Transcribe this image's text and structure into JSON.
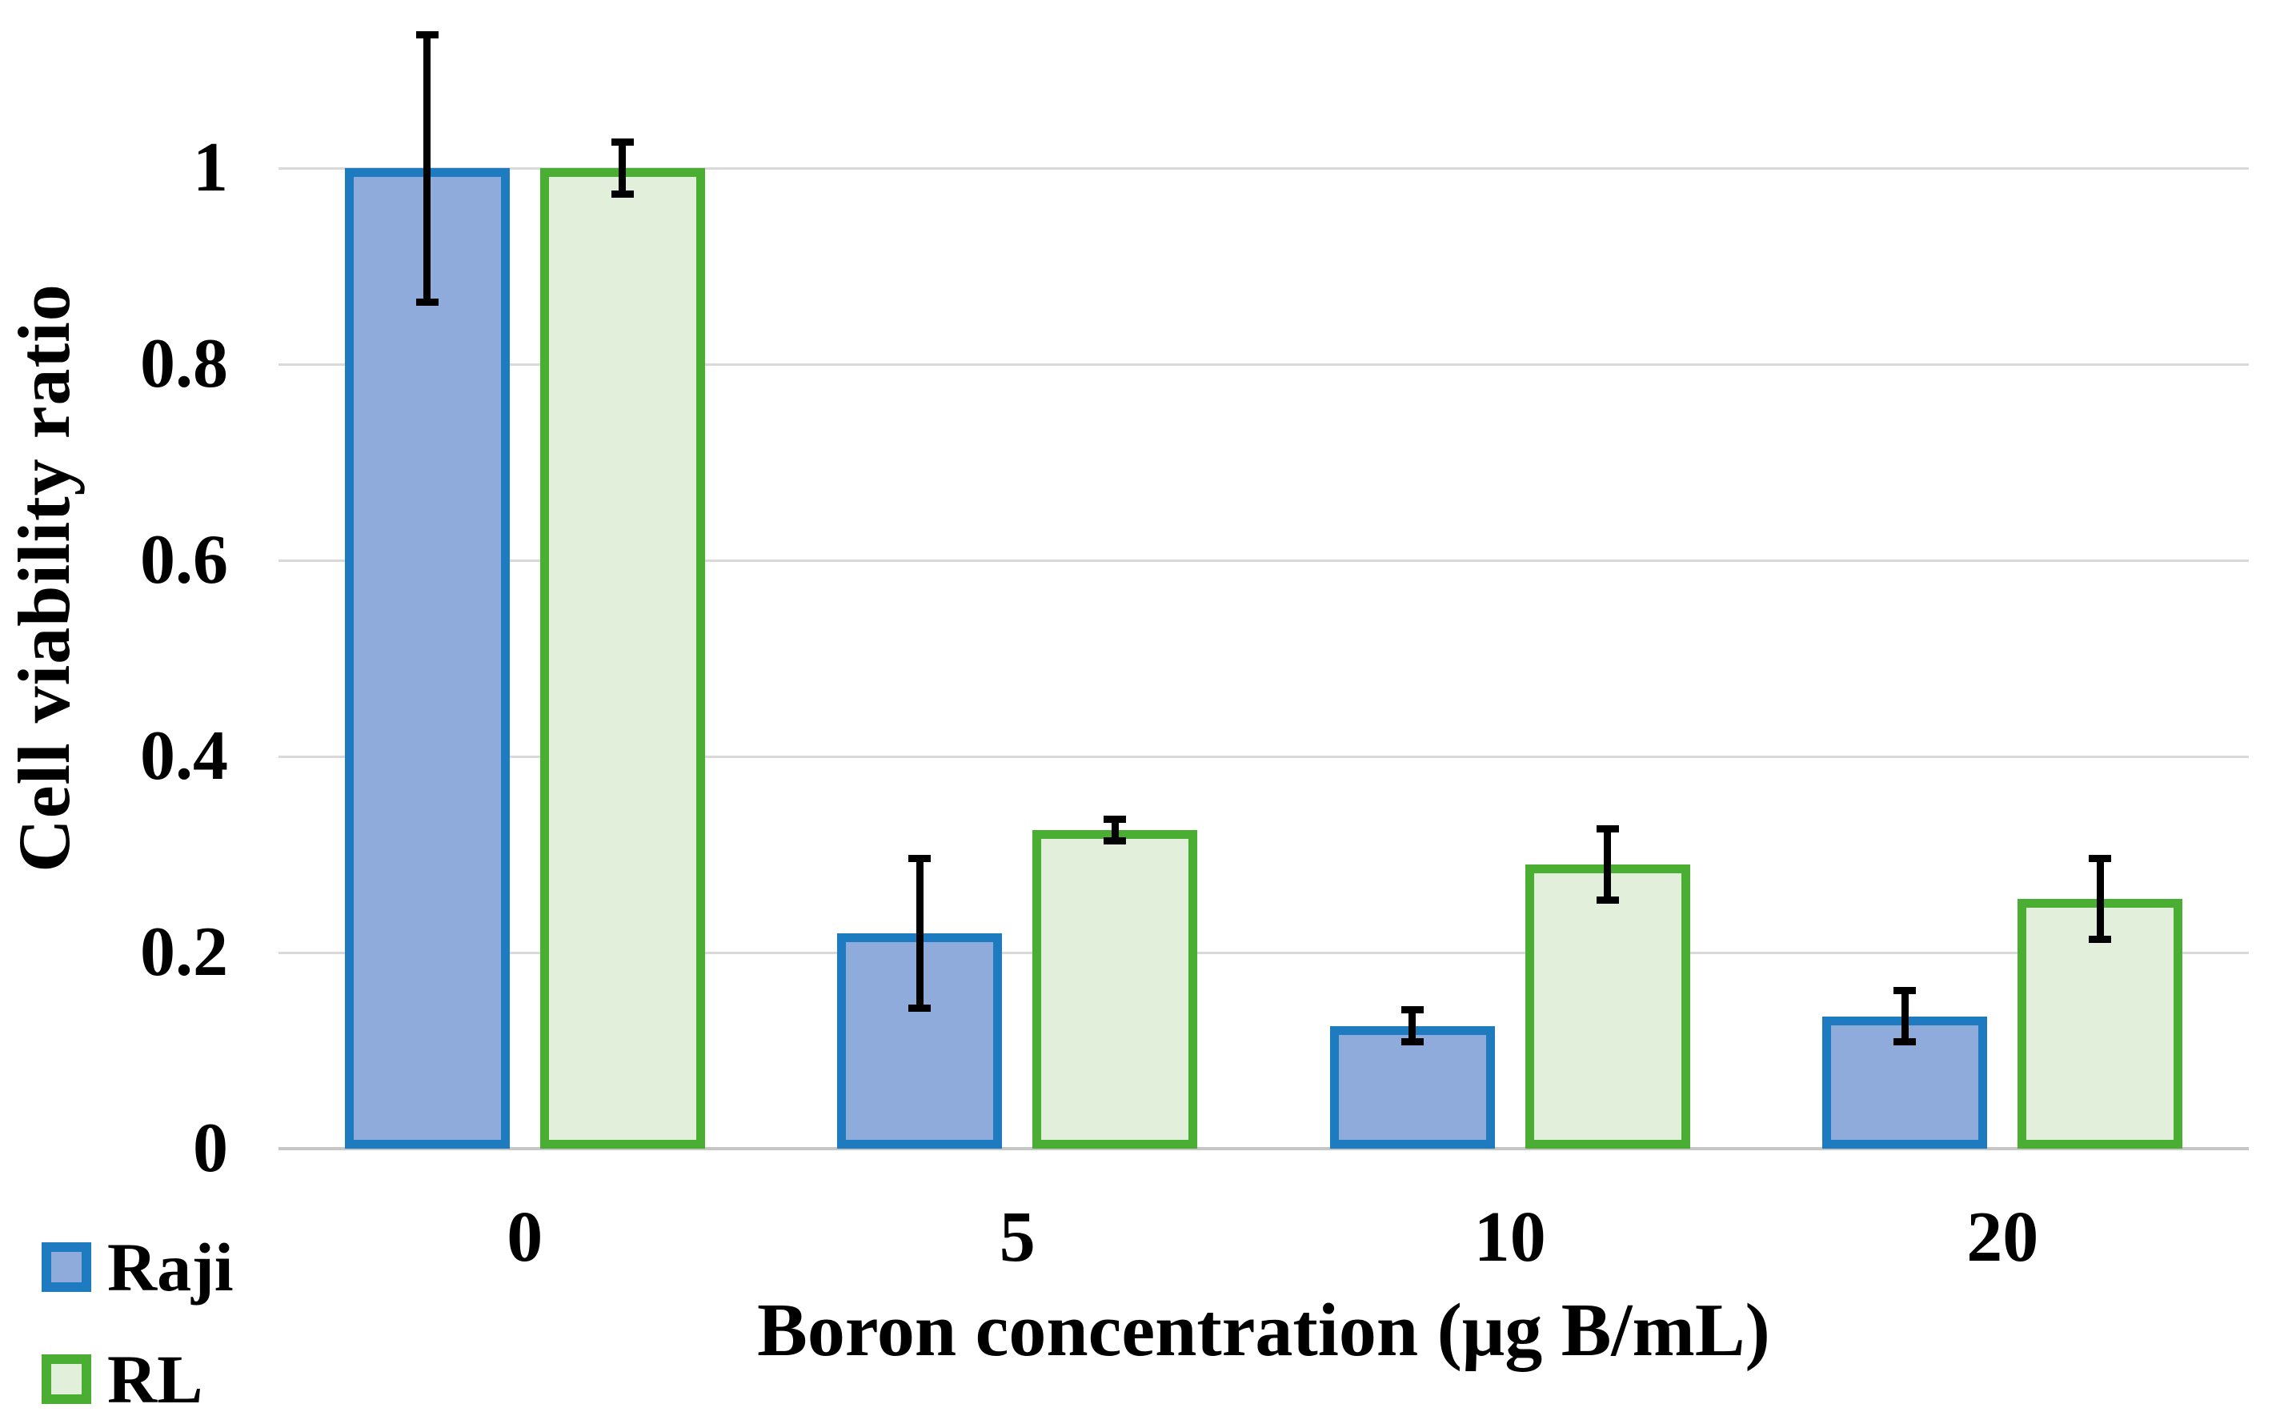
{
  "chart_data": {
    "type": "bar",
    "title": "",
    "xlabel": "Boron concentration (μg B/mL)",
    "ylabel": "Cell viability ratio",
    "categories": [
      "0",
      "5",
      "10",
      "20"
    ],
    "series": [
      {
        "name": "Raji",
        "values": [
          1.0,
          0.22,
          0.125,
          0.135
        ],
        "errors": [
          0.14,
          0.08,
          0.02,
          0.03
        ],
        "fill_color": "#8FABDC",
        "border_color": "#1F7BC0"
      },
      {
        "name": "RL",
        "values": [
          1.0,
          0.325,
          0.29,
          0.255
        ],
        "errors": [
          0.03,
          0.015,
          0.04,
          0.045
        ],
        "fill_color": "#E2EFDB",
        "border_color": "#4AAE32"
      }
    ],
    "y_ticks": [
      "1",
      "0.8",
      "0.6",
      "0.4",
      "0.2",
      "0"
    ],
    "y_tick_values": [
      1,
      0.8,
      0.6,
      0.4,
      0.2,
      0
    ],
    "ylim": [
      0,
      1.2
    ],
    "grid": "horizontal",
    "gridline_color": "#D9D9D9",
    "baseline_color": "#C6C6C6",
    "error_bar_color": "#000000",
    "legend_position": "bottom-left"
  }
}
